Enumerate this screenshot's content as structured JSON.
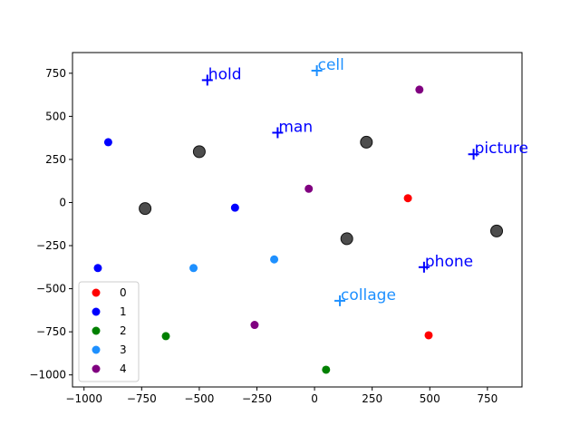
{
  "chart_data": {
    "type": "scatter",
    "title": "",
    "xlabel": "",
    "ylabel": "",
    "xlim": [
      -1050,
      900
    ],
    "ylim": [
      -1070,
      870
    ],
    "grid": false,
    "legend_placement": "lower-left",
    "x_ticks": [
      -1000,
      -750,
      -500,
      -250,
      0,
      250,
      500,
      750
    ],
    "y_ticks": [
      -1000,
      -750,
      -500,
      -250,
      0,
      250,
      500,
      750
    ],
    "x_tick_labels": [
      "−1000",
      "−750",
      "−500",
      "−250",
      "0",
      "250",
      "500",
      "750"
    ],
    "y_tick_labels": [
      "−1000",
      "−750",
      "−500",
      "−250",
      "0",
      "250",
      "500",
      "750"
    ],
    "colors": {
      "0": "#ff0000",
      "1": "#0000ff",
      "2": "#008000",
      "3": "#1e90ff",
      "4": "#800080",
      "centroid": "#3a3a3a"
    },
    "series": [
      {
        "name": "0",
        "color": "#ff0000",
        "points": [
          [
            405,
            25
          ],
          [
            495,
            -770
          ]
        ]
      },
      {
        "name": "1",
        "color": "#0000ff",
        "points": [
          [
            -895,
            350
          ],
          [
            -345,
            -30
          ],
          [
            -940,
            -380
          ]
        ]
      },
      {
        "name": "2",
        "color": "#008000",
        "points": [
          [
            -645,
            -775
          ],
          [
            50,
            -970
          ]
        ]
      },
      {
        "name": "3",
        "color": "#1e90ff",
        "points": [
          [
            -175,
            -330
          ],
          [
            -525,
            -380
          ]
        ]
      },
      {
        "name": "4",
        "color": "#800080",
        "points": [
          [
            455,
            655
          ],
          [
            -25,
            80
          ],
          [
            -260,
            -710
          ]
        ]
      }
    ],
    "centroids": [
      [
        -500,
        295
      ],
      [
        -735,
        -35
      ],
      [
        225,
        350
      ],
      [
        140,
        -210
      ],
      [
        790,
        -165
      ]
    ],
    "words": [
      {
        "text": "hold",
        "x": -465,
        "y": 710,
        "color": "#0000ff"
      },
      {
        "text": "cell",
        "x": 10,
        "y": 765,
        "color": "#1e90ff"
      },
      {
        "text": "man",
        "x": -160,
        "y": 405,
        "color": "#0000ff"
      },
      {
        "text": "picture",
        "x": 690,
        "y": 280,
        "color": "#0000ff"
      },
      {
        "text": "phone",
        "x": 475,
        "y": -375,
        "color": "#0000ff"
      },
      {
        "text": "collage",
        "x": 110,
        "y": -570,
        "color": "#1e90ff"
      }
    ],
    "legend": [
      "0",
      "1",
      "2",
      "3",
      "4"
    ]
  }
}
